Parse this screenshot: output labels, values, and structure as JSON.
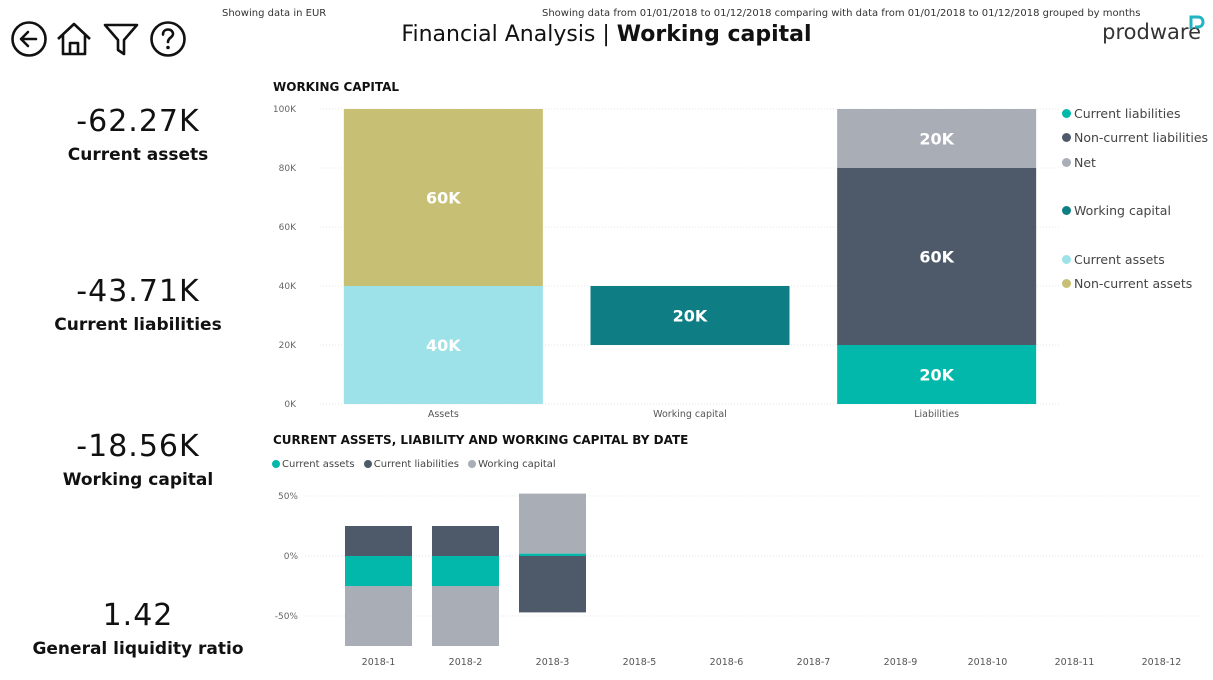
{
  "nav": {
    "back_icon": "back-arrow-icon",
    "home_icon": "home-icon",
    "filter_icon": "filter-icon",
    "help_icon": "help-icon"
  },
  "header": {
    "currency_note": "Showing data in EUR",
    "range_note": "Showing data from 01/01/2018 to 01/12/2018 comparing with data from 01/01/2018 to 01/12/2018 grouped by months",
    "title_prefix": "Financial Analysis | ",
    "title_strong": "Working capital",
    "logo_text": "prodware"
  },
  "kpis": [
    {
      "value": "-62.27K",
      "label": "Current assets"
    },
    {
      "value": "-43.71K",
      "label": "Current liabilities"
    },
    {
      "value": "-18.56K",
      "label": "Working capital"
    },
    {
      "value": "1.42",
      "label": "General liquidity ratio"
    }
  ],
  "colors": {
    "current_liabilities": "#01B8AA",
    "non_current_liabilities": "#4E5A6A",
    "net": "#A8ADB6",
    "working_capital": "#0E7E84",
    "current_assets": "#9CE2E8",
    "non_current_assets": "#C6BF74"
  },
  "chart_data": [
    {
      "type": "bar",
      "title": "WORKING CAPITAL",
      "categories": [
        "Assets",
        "Working capital",
        "Liabilities"
      ],
      "ylim": [
        0,
        100000
      ],
      "y_ticks": [
        "0K",
        "20K",
        "40K",
        "60K",
        "80K",
        "100K"
      ],
      "grid": true,
      "legend_position": "right",
      "legend": [
        "Current liabilities",
        "Non-current liabilities",
        "Net",
        "Working capital",
        "Current assets",
        "Non-current assets"
      ],
      "segments": [
        {
          "category": "Assets",
          "series": "Current assets",
          "base": 0,
          "value": 40000,
          "label": "40K"
        },
        {
          "category": "Assets",
          "series": "Non-current assets",
          "base": 40000,
          "value": 60000,
          "label": "60K"
        },
        {
          "category": "Working capital",
          "series": "Working capital",
          "base": 20000,
          "value": 20000,
          "label": "20K"
        },
        {
          "category": "Liabilities",
          "series": "Current liabilities",
          "base": 0,
          "value": 20000,
          "label": "20K"
        },
        {
          "category": "Liabilities",
          "series": "Non-current liabilities",
          "base": 20000,
          "value": 60000,
          "label": "60K"
        },
        {
          "category": "Liabilities",
          "series": "Net",
          "base": 80000,
          "value": 20000,
          "label": "20K"
        }
      ]
    },
    {
      "type": "bar",
      "title": "CURRENT ASSETS, LIABILITY AND WORKING CAPITAL BY DATE",
      "categories": [
        "2018-1",
        "2018-2",
        "2018-3",
        "2018-5",
        "2018-6",
        "2018-7",
        "2018-9",
        "2018-10",
        "2018-11",
        "2018-12"
      ],
      "ylim": [
        -75,
        55
      ],
      "y_ticks": [
        "-50%",
        "0%",
        "50%"
      ],
      "grid": true,
      "legend_position": "top-left",
      "series": [
        {
          "name": "Current assets",
          "values": [
            -25,
            -25,
            2,
            null,
            null,
            null,
            null,
            null,
            null,
            null
          ]
        },
        {
          "name": "Current liabilities",
          "values": [
            25,
            25,
            -47,
            null,
            null,
            null,
            null,
            null,
            null,
            null
          ]
        },
        {
          "name": "Working capital",
          "values": [
            -50,
            -50,
            50,
            null,
            null,
            null,
            null,
            null,
            null,
            null
          ]
        }
      ]
    }
  ]
}
